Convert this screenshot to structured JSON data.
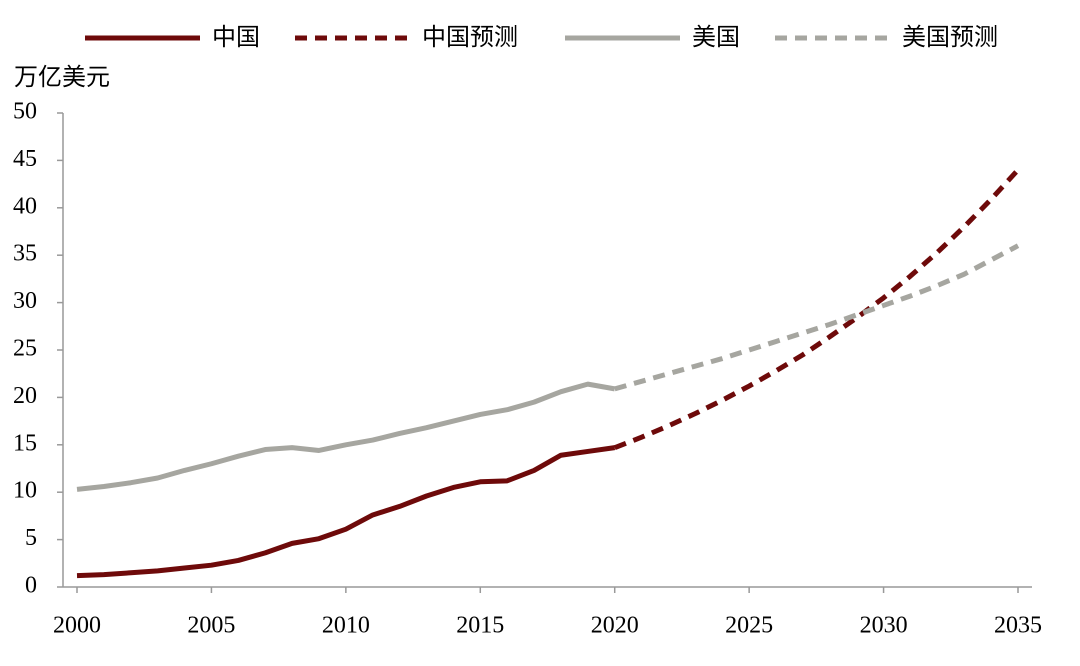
{
  "chart_data": {
    "type": "line",
    "y_label": "万亿美元",
    "xlim": [
      2000,
      2035
    ],
    "xticks": [
      2000,
      2005,
      2010,
      2015,
      2020,
      2025,
      2030,
      2035
    ],
    "ylim": [
      0,
      50
    ],
    "yticks": [
      0,
      5,
      10,
      15,
      20,
      25,
      30,
      35,
      40,
      45,
      50
    ],
    "series": [
      {
        "name": "中国",
        "color": "#6e0a0a",
        "dashed": false,
        "x": [
          2000,
          2001,
          2002,
          2003,
          2004,
          2005,
          2006,
          2007,
          2008,
          2009,
          2010,
          2011,
          2012,
          2013,
          2014,
          2015,
          2016,
          2017,
          2018,
          2019,
          2020
        ],
        "values": [
          1.2,
          1.3,
          1.5,
          1.7,
          2.0,
          2.3,
          2.8,
          3.6,
          4.6,
          5.1,
          6.1,
          7.6,
          8.5,
          9.6,
          10.5,
          11.1,
          11.2,
          12.3,
          13.9,
          14.3,
          14.7
        ]
      },
      {
        "name": "中国预测",
        "color": "#6e0a0a",
        "dashed": true,
        "x": [
          2020,
          2021,
          2022,
          2023,
          2024,
          2025,
          2026,
          2027,
          2028,
          2029,
          2030,
          2031,
          2032,
          2033,
          2034,
          2035
        ],
        "values": [
          14.7,
          15.8,
          17.0,
          18.3,
          19.7,
          21.2,
          22.8,
          24.5,
          26.4,
          28.4,
          30.5,
          32.8,
          35.3,
          38.0,
          40.9,
          44.0
        ]
      },
      {
        "name": "美国",
        "color": "#a6a6a0",
        "dashed": false,
        "x": [
          2000,
          2001,
          2002,
          2003,
          2004,
          2005,
          2006,
          2007,
          2008,
          2009,
          2010,
          2011,
          2012,
          2013,
          2014,
          2015,
          2016,
          2017,
          2018,
          2019,
          2020
        ],
        "values": [
          10.3,
          10.6,
          11.0,
          11.5,
          12.3,
          13.0,
          13.8,
          14.5,
          14.7,
          14.4,
          15.0,
          15.5,
          16.2,
          16.8,
          17.5,
          18.2,
          18.7,
          19.5,
          20.6,
          21.4,
          20.9
        ]
      },
      {
        "name": "美国预测",
        "color": "#a6a6a0",
        "dashed": true,
        "x": [
          2020,
          2021,
          2022,
          2023,
          2024,
          2025,
          2026,
          2027,
          2028,
          2029,
          2030,
          2031,
          2032,
          2033,
          2034,
          2035
        ],
        "values": [
          20.9,
          21.7,
          22.5,
          23.3,
          24.1,
          25.0,
          25.9,
          26.8,
          27.7,
          28.7,
          29.7,
          30.7,
          31.8,
          33.0,
          34.5,
          36.0
        ]
      }
    ]
  }
}
